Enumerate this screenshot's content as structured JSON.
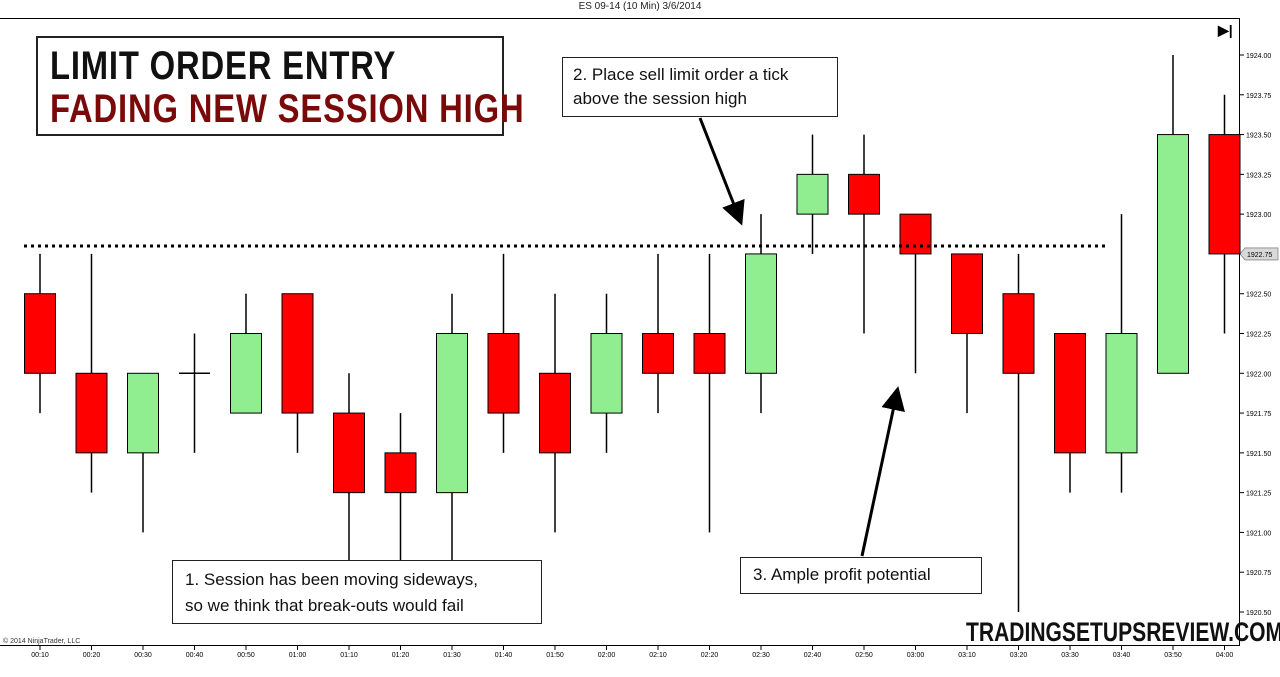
{
  "window_title": "ES 09-14 (10 Min)  3/6/2014",
  "title_box": {
    "line1": "LIMIT ORDER ENTRY",
    "line2": "FADING NEW SESSION HIGH",
    "line2_color": "#7a0a0a"
  },
  "annotations": {
    "note1": [
      "1. Session has been moving sideways,",
      "so we think that break-outs would  fail"
    ],
    "note2": [
      "2. Place sell limit order a tick",
      "above the session high"
    ],
    "note3": [
      "3. Ample  profit potential"
    ]
  },
  "brand": "TRADINGSETUPSREVIEW.COM",
  "copyright": "© 2014 NinjaTrader, LLC",
  "end_marker": "▶|",
  "colors": {
    "bullish": "#90EE90",
    "bearish": "#FF0000",
    "wick": "#000000",
    "session_high_line": "#000000"
  },
  "chart_data": {
    "type": "candlestick",
    "ylim": [
      1920.5,
      1924.0
    ],
    "y_ticks": [
      "1924.00",
      "1923.75",
      "1923.50",
      "1923.25",
      "1923.00",
      "1922.75",
      "1922.50",
      "1922.25",
      "1922.00",
      "1921.75",
      "1921.50",
      "1921.25",
      "1921.00",
      "1920.75",
      "1920.50"
    ],
    "current_price_label": "1922.75",
    "session_high_level": 1922.8,
    "categories": [
      "00:10",
      "00:20",
      "00:30",
      "00:40",
      "00:50",
      "01:00",
      "01:10",
      "01:20",
      "01:30",
      "01:40",
      "01:50",
      "02:00",
      "02:10",
      "02:20",
      "02:30",
      "02:40",
      "02:50",
      "03:00",
      "03:10",
      "03:20",
      "03:30",
      "03:40",
      "03:50",
      "04:00"
    ],
    "candles": [
      {
        "open": 1922.5,
        "high": 1922.75,
        "low": 1921.75,
        "close": 1922.0
      },
      {
        "open": 1922.0,
        "high": 1922.75,
        "low": 1921.25,
        "close": 1921.5
      },
      {
        "open": 1921.5,
        "high": 1922.0,
        "low": 1921.0,
        "close": 1922.0
      },
      {
        "open": 1922.0,
        "high": 1922.25,
        "low": 1921.5,
        "close": 1922.0
      },
      {
        "open": 1921.75,
        "high": 1922.5,
        "low": 1921.75,
        "close": 1922.25
      },
      {
        "open": 1922.5,
        "high": 1922.5,
        "low": 1921.5,
        "close": 1921.75
      },
      {
        "open": 1921.75,
        "high": 1922.0,
        "low": 1920.75,
        "close": 1921.25
      },
      {
        "open": 1921.5,
        "high": 1921.75,
        "low": 1920.75,
        "close": 1921.25
      },
      {
        "open": 1921.25,
        "high": 1922.5,
        "low": 1920.75,
        "close": 1922.25
      },
      {
        "open": 1922.25,
        "high": 1922.75,
        "low": 1921.5,
        "close": 1921.75
      },
      {
        "open": 1922.0,
        "high": 1922.5,
        "low": 1921.0,
        "close": 1921.5
      },
      {
        "open": 1921.75,
        "high": 1922.5,
        "low": 1921.5,
        "close": 1922.25
      },
      {
        "open": 1922.25,
        "high": 1922.75,
        "low": 1921.75,
        "close": 1922.0
      },
      {
        "open": 1922.25,
        "high": 1922.75,
        "low": 1921.0,
        "close": 1922.0
      },
      {
        "open": 1922.0,
        "high": 1923.0,
        "low": 1921.75,
        "close": 1922.75
      },
      {
        "open": 1923.0,
        "high": 1923.5,
        "low": 1922.75,
        "close": 1923.25
      },
      {
        "open": 1923.25,
        "high": 1923.5,
        "low": 1922.25,
        "close": 1923.0
      },
      {
        "open": 1923.0,
        "high": 1923.0,
        "low": 1922.0,
        "close": 1922.75
      },
      {
        "open": 1922.75,
        "high": 1922.75,
        "low": 1921.75,
        "close": 1922.25
      },
      {
        "open": 1922.5,
        "high": 1922.75,
        "low": 1920.5,
        "close": 1922.0
      },
      {
        "open": 1922.25,
        "high": 1922.25,
        "low": 1921.25,
        "close": 1921.5
      },
      {
        "open": 1921.5,
        "high": 1923.0,
        "low": 1921.25,
        "close": 1922.25
      },
      {
        "open": 1922.0,
        "high": 1924.0,
        "low": 1922.0,
        "close": 1923.5
      },
      {
        "open": 1923.5,
        "high": 1923.75,
        "low": 1922.25,
        "close": 1922.75
      }
    ]
  }
}
